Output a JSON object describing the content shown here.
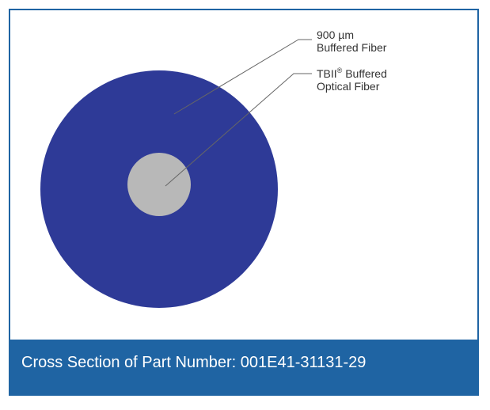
{
  "colors": {
    "frame_border": "#1f64a3",
    "caption_background": "#1f64a3",
    "caption_text": "#ffffff",
    "outer_buffer": "#2e3a97",
    "inner_fiber": "#b8b8b8",
    "leader_line": "#666666"
  },
  "labels": {
    "buffered_fiber": {
      "line1": "900 µm",
      "line2": "Buffered Fiber"
    },
    "optical_fiber": {
      "line1_prefix": "TBII",
      "line1_superscript": "®",
      "line1_suffix": " Buffered",
      "line2": "Optical  Fiber"
    }
  },
  "caption": {
    "text": "Cross Section of Part Number: 001E41-31131-29"
  }
}
